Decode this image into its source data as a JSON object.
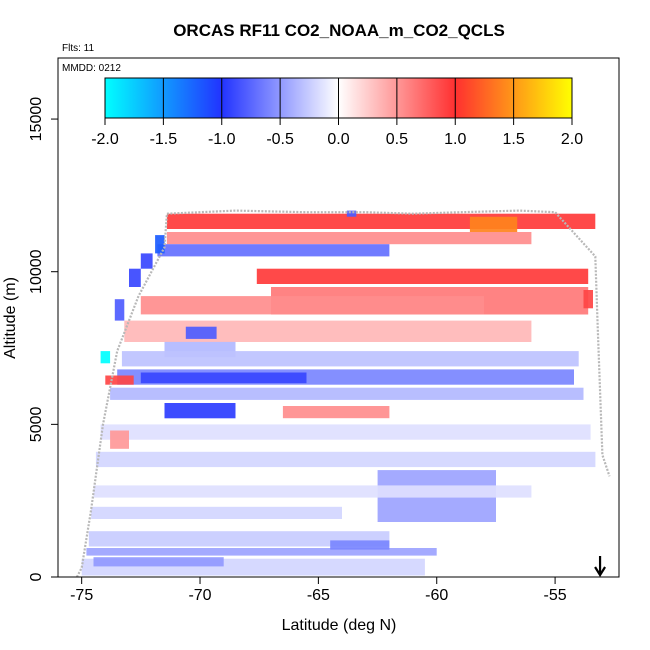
{
  "chart_data": {
    "type": "heatmap",
    "title": "ORCAS RF11 CO2_NOAA_m_CO2_QCLS",
    "annotations": [
      "Flts: 11",
      "MMDD: 0212"
    ],
    "xlabel": "Latitude (deg N)",
    "ylabel": "Altitude (m)",
    "xlim": [
      -76,
      -52.3
    ],
    "ylim": [
      0,
      17000
    ],
    "x_ticks": [
      -75,
      -70,
      -65,
      -60,
      -55
    ],
    "x_tick_labels": [
      "-75",
      "-70",
      "-65",
      "-60",
      "-55"
    ],
    "y_ticks": [
      0,
      5000,
      10000,
      15000
    ],
    "y_tick_labels": [
      "0",
      "5000",
      "10000",
      "15000"
    ],
    "colorbar": {
      "min": -2.0,
      "max": 2.0,
      "ticks": [
        -2.0,
        -1.5,
        -1.0,
        -0.5,
        0.0,
        0.5,
        1.0,
        1.5,
        2.0
      ],
      "tick_labels": [
        "-2.0",
        "-1.5",
        "-1.0",
        "-0.5",
        "0.0",
        "0.5",
        "1.0",
        "1.5",
        "2.0"
      ],
      "placement": "top inside plot",
      "colors": {
        "neg2": "#00ffff",
        "neg1": "#2233ff",
        "zero": "#ffffff",
        "pos1": "#ff3030",
        "pos2": "#ffff00"
      }
    },
    "marker": {
      "symbol": "↓",
      "latitude": -53.1
    },
    "bands": [
      {
        "lat": [
          -71.4,
          -53.3
        ],
        "alt": [
          11400,
          11900
        ],
        "value": 0.95
      },
      {
        "lat": [
          -58.6,
          -56.6
        ],
        "alt": [
          11300,
          11800
        ],
        "value": 1.4
      },
      {
        "lat": [
          -71.4,
          -56.0
        ],
        "alt": [
          10900,
          11300
        ],
        "value": 0.55
      },
      {
        "lat": [
          -71.8,
          -62.0
        ],
        "alt": [
          10500,
          10900
        ],
        "value": -0.7
      },
      {
        "lat": [
          -67.6,
          -53.6
        ],
        "alt": [
          9600,
          10100
        ],
        "value": 0.95
      },
      {
        "lat": [
          -67.0,
          -53.6
        ],
        "alt": [
          8600,
          9500
        ],
        "value": 0.65
      },
      {
        "lat": [
          -72.5,
          -58.0
        ],
        "alt": [
          8600,
          9200
        ],
        "value": 0.55
      },
      {
        "lat": [
          -73.2,
          -56.0
        ],
        "alt": [
          7700,
          8400
        ],
        "value": 0.35
      },
      {
        "lat": [
          -70.6,
          -69.3
        ],
        "alt": [
          7800,
          8200
        ],
        "value": -0.8
      },
      {
        "lat": [
          -71.5,
          -68.5
        ],
        "alt": [
          7200,
          7700
        ],
        "value": -0.35
      },
      {
        "lat": [
          -73.3,
          -54.0
        ],
        "alt": [
          6900,
          7400
        ],
        "value": -0.3
      },
      {
        "lat": [
          -73.5,
          -54.2
        ],
        "alt": [
          6300,
          6800
        ],
        "value": -0.6
      },
      {
        "lat": [
          -72.5,
          -65.5
        ],
        "alt": [
          6350,
          6700
        ],
        "value": -0.9
      },
      {
        "lat": [
          -74.0,
          -72.8
        ],
        "alt": [
          6300,
          6600
        ],
        "value": 0.9
      },
      {
        "lat": [
          -73.8,
          -53.8
        ],
        "alt": [
          5800,
          6200
        ],
        "value": -0.35
      },
      {
        "lat": [
          -71.5,
          -68.5
        ],
        "alt": [
          5200,
          5700
        ],
        "value": -0.95
      },
      {
        "lat": [
          -66.5,
          -62.0
        ],
        "alt": [
          5200,
          5600
        ],
        "value": 0.55
      },
      {
        "lat": [
          -74.2,
          -53.5
        ],
        "alt": [
          4500,
          5000
        ],
        "value": -0.15
      },
      {
        "lat": [
          -73.8,
          -73.0
        ],
        "alt": [
          4200,
          4800
        ],
        "value": 0.5
      },
      {
        "lat": [
          -74.4,
          -53.3
        ],
        "alt": [
          3600,
          4100
        ],
        "value": -0.2
      },
      {
        "lat": [
          -62.5,
          -57.5
        ],
        "alt": [
          1800,
          3500
        ],
        "value": -0.45
      },
      {
        "lat": [
          -74.5,
          -56.0
        ],
        "alt": [
          2600,
          3000
        ],
        "value": -0.15
      },
      {
        "lat": [
          -74.6,
          -64.0
        ],
        "alt": [
          1900,
          2300
        ],
        "value": -0.2
      },
      {
        "lat": [
          -74.7,
          -62.0
        ],
        "alt": [
          1000,
          1500
        ],
        "value": -0.25
      },
      {
        "lat": [
          -74.8,
          -60.0
        ],
        "alt": [
          700,
          950
        ],
        "value": -0.45
      },
      {
        "lat": [
          -64.5,
          -62.0
        ],
        "alt": [
          900,
          1200
        ],
        "value": -0.6
      },
      {
        "lat": [
          -75.0,
          -60.5
        ],
        "alt": [
          50,
          600
        ],
        "value": -0.2
      },
      {
        "lat": [
          -74.5,
          -69.0
        ],
        "alt": [
          350,
          650
        ],
        "value": -0.5
      }
    ],
    "edge_cells": [
      {
        "lat": [
          -74.2,
          -73.8
        ],
        "alt": [
          7000,
          7400
        ],
        "value": -2.0
      },
      {
        "lat": [
          -73.0,
          -72.5
        ],
        "alt": [
          9500,
          10100
        ],
        "value": -0.9
      },
      {
        "lat": [
          -72.5,
          -72.0
        ],
        "alt": [
          10100,
          10600
        ],
        "value": -0.9
      },
      {
        "lat": [
          -71.9,
          -71.5
        ],
        "alt": [
          10600,
          11200
        ],
        "value": -1.2
      },
      {
        "lat": [
          -73.6,
          -73.2
        ],
        "alt": [
          8400,
          9100
        ],
        "value": -0.8
      },
      {
        "lat": [
          -53.8,
          -53.4
        ],
        "alt": [
          8800,
          9400
        ],
        "value": 0.9
      },
      {
        "lat": [
          -63.8,
          -63.4
        ],
        "alt": [
          11800,
          12000
        ],
        "value": -0.8
      }
    ],
    "flight_track": [
      [
        -75.2,
        0
      ],
      [
        -75.0,
        300
      ],
      [
        -74.6,
        2200
      ],
      [
        -74.1,
        5000
      ],
      [
        -73.5,
        7400
      ],
      [
        -72.6,
        9200
      ],
      [
        -71.5,
        10800
      ],
      [
        -71.4,
        11900
      ],
      [
        -68.5,
        12000
      ],
      [
        -65.5,
        11950
      ],
      [
        -63.0,
        11950
      ],
      [
        -61.0,
        11900
      ],
      [
        -59.0,
        11950
      ],
      [
        -56.5,
        12000
      ],
      [
        -55.0,
        11950
      ],
      [
        -53.3,
        10500
      ],
      [
        -53.2,
        8200
      ],
      [
        -53.0,
        4000
      ],
      [
        -52.7,
        3300
      ]
    ]
  }
}
